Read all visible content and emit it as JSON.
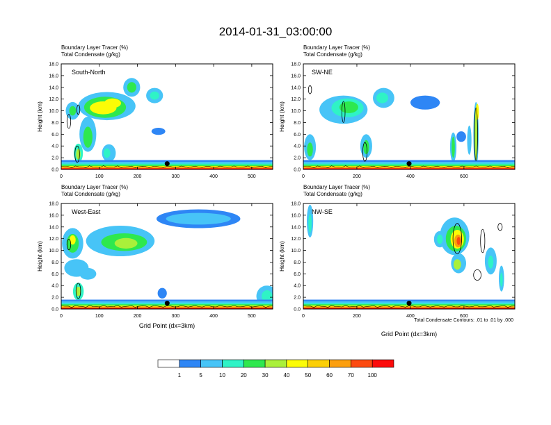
{
  "title": "2014-01-31_03:00:00",
  "colors": {
    "levels": [
      "#ffffff",
      "#2e86f5",
      "#47c4f7",
      "#2ff3c6",
      "#2ee84e",
      "#aaf03a",
      "#fcfc06",
      "#fccf06",
      "#fc9f0e",
      "#fc4a10",
      "#fc0b0b"
    ],
    "axis": "#000000",
    "terrain": "#d21010"
  },
  "colorbar": {
    "labels": [
      "1",
      "5",
      "10",
      "20",
      "30",
      "40",
      "50",
      "60",
      "70",
      "100"
    ]
  },
  "contour_note": "Total Condensate Contours: .01 to .01 by .000",
  "chart_data": [
    {
      "type": "heatmap",
      "label": "South-North",
      "subtitle1": "Boundary Layer Tracer   (%)",
      "subtitle2": "Total Condensate   (g/kg)",
      "ylabel": "Height (km)",
      "xlabel": "",
      "xlim": [
        0,
        555
      ],
      "ylim": [
        0,
        18
      ],
      "xticks": [
        "0",
        "100",
        "200",
        "300",
        "400",
        "500"
      ],
      "yticks": [
        "0.0",
        "2.0",
        "4.0",
        "6.0",
        "8.0",
        "10.0",
        "12.0",
        "14.0",
        "16.0",
        "18.0"
      ],
      "marker": {
        "x": 278,
        "y": 1.0
      }
    },
    {
      "type": "heatmap",
      "label": "SW-NE",
      "subtitle1": "Boundary Layer Tracer   (%)",
      "subtitle2": "Total Condensate   (g/kg)",
      "ylabel": "Height (km)",
      "xlabel": "",
      "xlim": [
        0,
        790
      ],
      "ylim": [
        0,
        18
      ],
      "xticks": [
        "0",
        "200",
        "400",
        "600"
      ],
      "yticks": [
        "0.0",
        "2.0",
        "4.0",
        "6.0",
        "8.0",
        "10.0",
        "12.0",
        "14.0",
        "16.0",
        "18.0"
      ],
      "marker": {
        "x": 395,
        "y": 1.0
      }
    },
    {
      "type": "heatmap",
      "label": "West-East",
      "subtitle1": "Boundary Layer Tracer   (%)",
      "subtitle2": "Total Condensate   (g/kg)",
      "ylabel": "Height (km)",
      "xlabel": "Grid Point (dx=3km)",
      "xlim": [
        0,
        555
      ],
      "ylim": [
        0,
        18
      ],
      "xticks": [
        "0",
        "100",
        "200",
        "300",
        "400",
        "500"
      ],
      "yticks": [
        "0.0",
        "2.0",
        "4.0",
        "6.0",
        "8.0",
        "10.0",
        "12.0",
        "14.0",
        "16.0",
        "18.0"
      ],
      "marker": {
        "x": 278,
        "y": 1.0
      }
    },
    {
      "type": "heatmap",
      "label": "NW-SE",
      "subtitle1": "Boundary Layer Tracer   (%)",
      "subtitle2": "Total Condensate   (g/kg)",
      "ylabel": "Height (km)",
      "xlabel": "Grid Point (dx=3km)",
      "xlim": [
        0,
        790
      ],
      "ylim": [
        0,
        18
      ],
      "xticks": [
        "0",
        "200",
        "400",
        "600"
      ],
      "yticks": [
        "0.0",
        "2.0",
        "4.0",
        "6.0",
        "8.0",
        "10.0",
        "12.0",
        "14.0",
        "16.0",
        "18.0"
      ],
      "marker": {
        "x": 395,
        "y": 1.0
      }
    }
  ]
}
